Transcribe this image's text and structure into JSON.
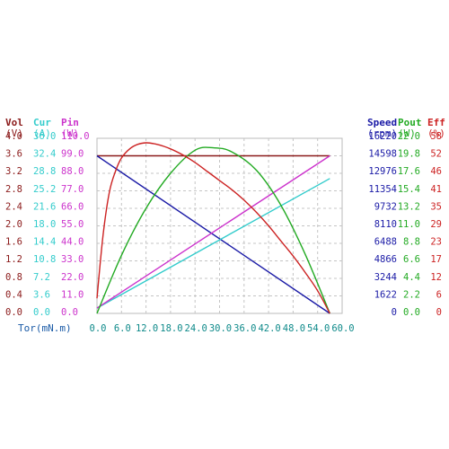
{
  "chart_data": {
    "type": "line",
    "x_axis": {
      "label": "Tor(mN.m)",
      "ticks": [
        "0.0",
        "6.0",
        "12.0",
        "18.0",
        "24.0",
        "30.0",
        "36.0",
        "42.0",
        "48.0",
        "54.0",
        "60.0"
      ],
      "range": [
        0,
        60
      ]
    },
    "left_axes": [
      {
        "name": "Vol",
        "unit": "(V)",
        "color": "#8b1a1a",
        "range": [
          0,
          4.0
        ],
        "ticks": [
          "0.0",
          "0.4",
          "0.8",
          "1.2",
          "1.6",
          "2.0",
          "2.4",
          "2.8",
          "3.2",
          "3.6",
          "4.0"
        ]
      },
      {
        "name": "Cur",
        "unit": "(A)",
        "color": "#33cccc",
        "range": [
          0,
          40.0
        ],
        "ticks": [
          "0.0",
          "3.6",
          "7.2",
          "10.8",
          "14.4",
          "18.0",
          "21.6",
          "25.2",
          "28.8",
          "32.4",
          "36.0"
        ]
      },
      {
        "name": "Pin",
        "unit": "(W)",
        "color": "#cc33cc",
        "range": [
          0,
          110.0
        ],
        "ticks": [
          "0.0",
          "11.0",
          "22.0",
          "33.0",
          "44.0",
          "55.0",
          "66.0",
          "77.0",
          "88.0",
          "99.0",
          "110.0"
        ]
      }
    ],
    "right_axes": [
      {
        "name": "Speed",
        "unit": "(rpm)",
        "color": "#1a1aa6",
        "range": [
          0,
          16220
        ],
        "ticks": [
          "0",
          "1622",
          "3244",
          "4866",
          "6488",
          "8110",
          "9732",
          "11354",
          "12976",
          "14598",
          "16220"
        ]
      },
      {
        "name": "Pout",
        "unit": "(W)",
        "color": "#22aa22",
        "range": [
          0,
          22.0
        ],
        "ticks": [
          "0.0",
          "2.2",
          "4.4",
          "6.6",
          "8.8",
          "11.0",
          "13.2",
          "15.4",
          "17.6",
          "19.8",
          "22.0"
        ]
      },
      {
        "name": "Eff",
        "unit": "(%)",
        "color": "#cc2222",
        "range": [
          0,
          58
        ],
        "ticks": [
          "0",
          "6",
          "12",
          "17",
          "23",
          "29",
          "35",
          "41",
          "46",
          "52",
          "58"
        ]
      }
    ],
    "grid": true,
    "series": [
      {
        "color": "#8b1a1a",
        "axis": "Vol",
        "x": [
          0,
          57
        ],
        "y": [
          3.6,
          3.6
        ]
      },
      {
        "color": "#1a1aa6",
        "axis": "Speed",
        "x": [
          0,
          57
        ],
        "y": [
          14598,
          0
        ]
      },
      {
        "color": "#33cccc",
        "axis": "Cur",
        "x": [
          0,
          57
        ],
        "y": [
          1.2,
          30.8
        ]
      },
      {
        "color": "#cc33cc",
        "axis": "Pin",
        "x": [
          0,
          57
        ],
        "y": [
          3.3,
          99.0
        ]
      },
      {
        "color": "#22aa22",
        "axis": "Pout",
        "x": [
          0,
          6,
          12,
          18,
          24,
          28.5,
          33,
          39,
          45,
          51,
          57
        ],
        "y": [
          0,
          7.3,
          13.2,
          17.6,
          20.5,
          20.8,
          20.3,
          18.0,
          13.6,
          7.4,
          0
        ]
      },
      {
        "color": "#cc2222",
        "axis": "Eff",
        "x": [
          0,
          1.5,
          3,
          4.5,
          6,
          8,
          10,
          12,
          14,
          16,
          18,
          21,
          24,
          27,
          30,
          33,
          36,
          39,
          42,
          45,
          48,
          51,
          54,
          57
        ],
        "y": [
          5,
          26,
          40,
          47,
          51.5,
          54.5,
          56,
          56.5,
          56.2,
          55.5,
          54.5,
          52.5,
          50,
          47,
          44,
          41,
          37.5,
          33.5,
          29,
          24,
          19,
          13.5,
          7.5,
          0
        ]
      }
    ]
  }
}
